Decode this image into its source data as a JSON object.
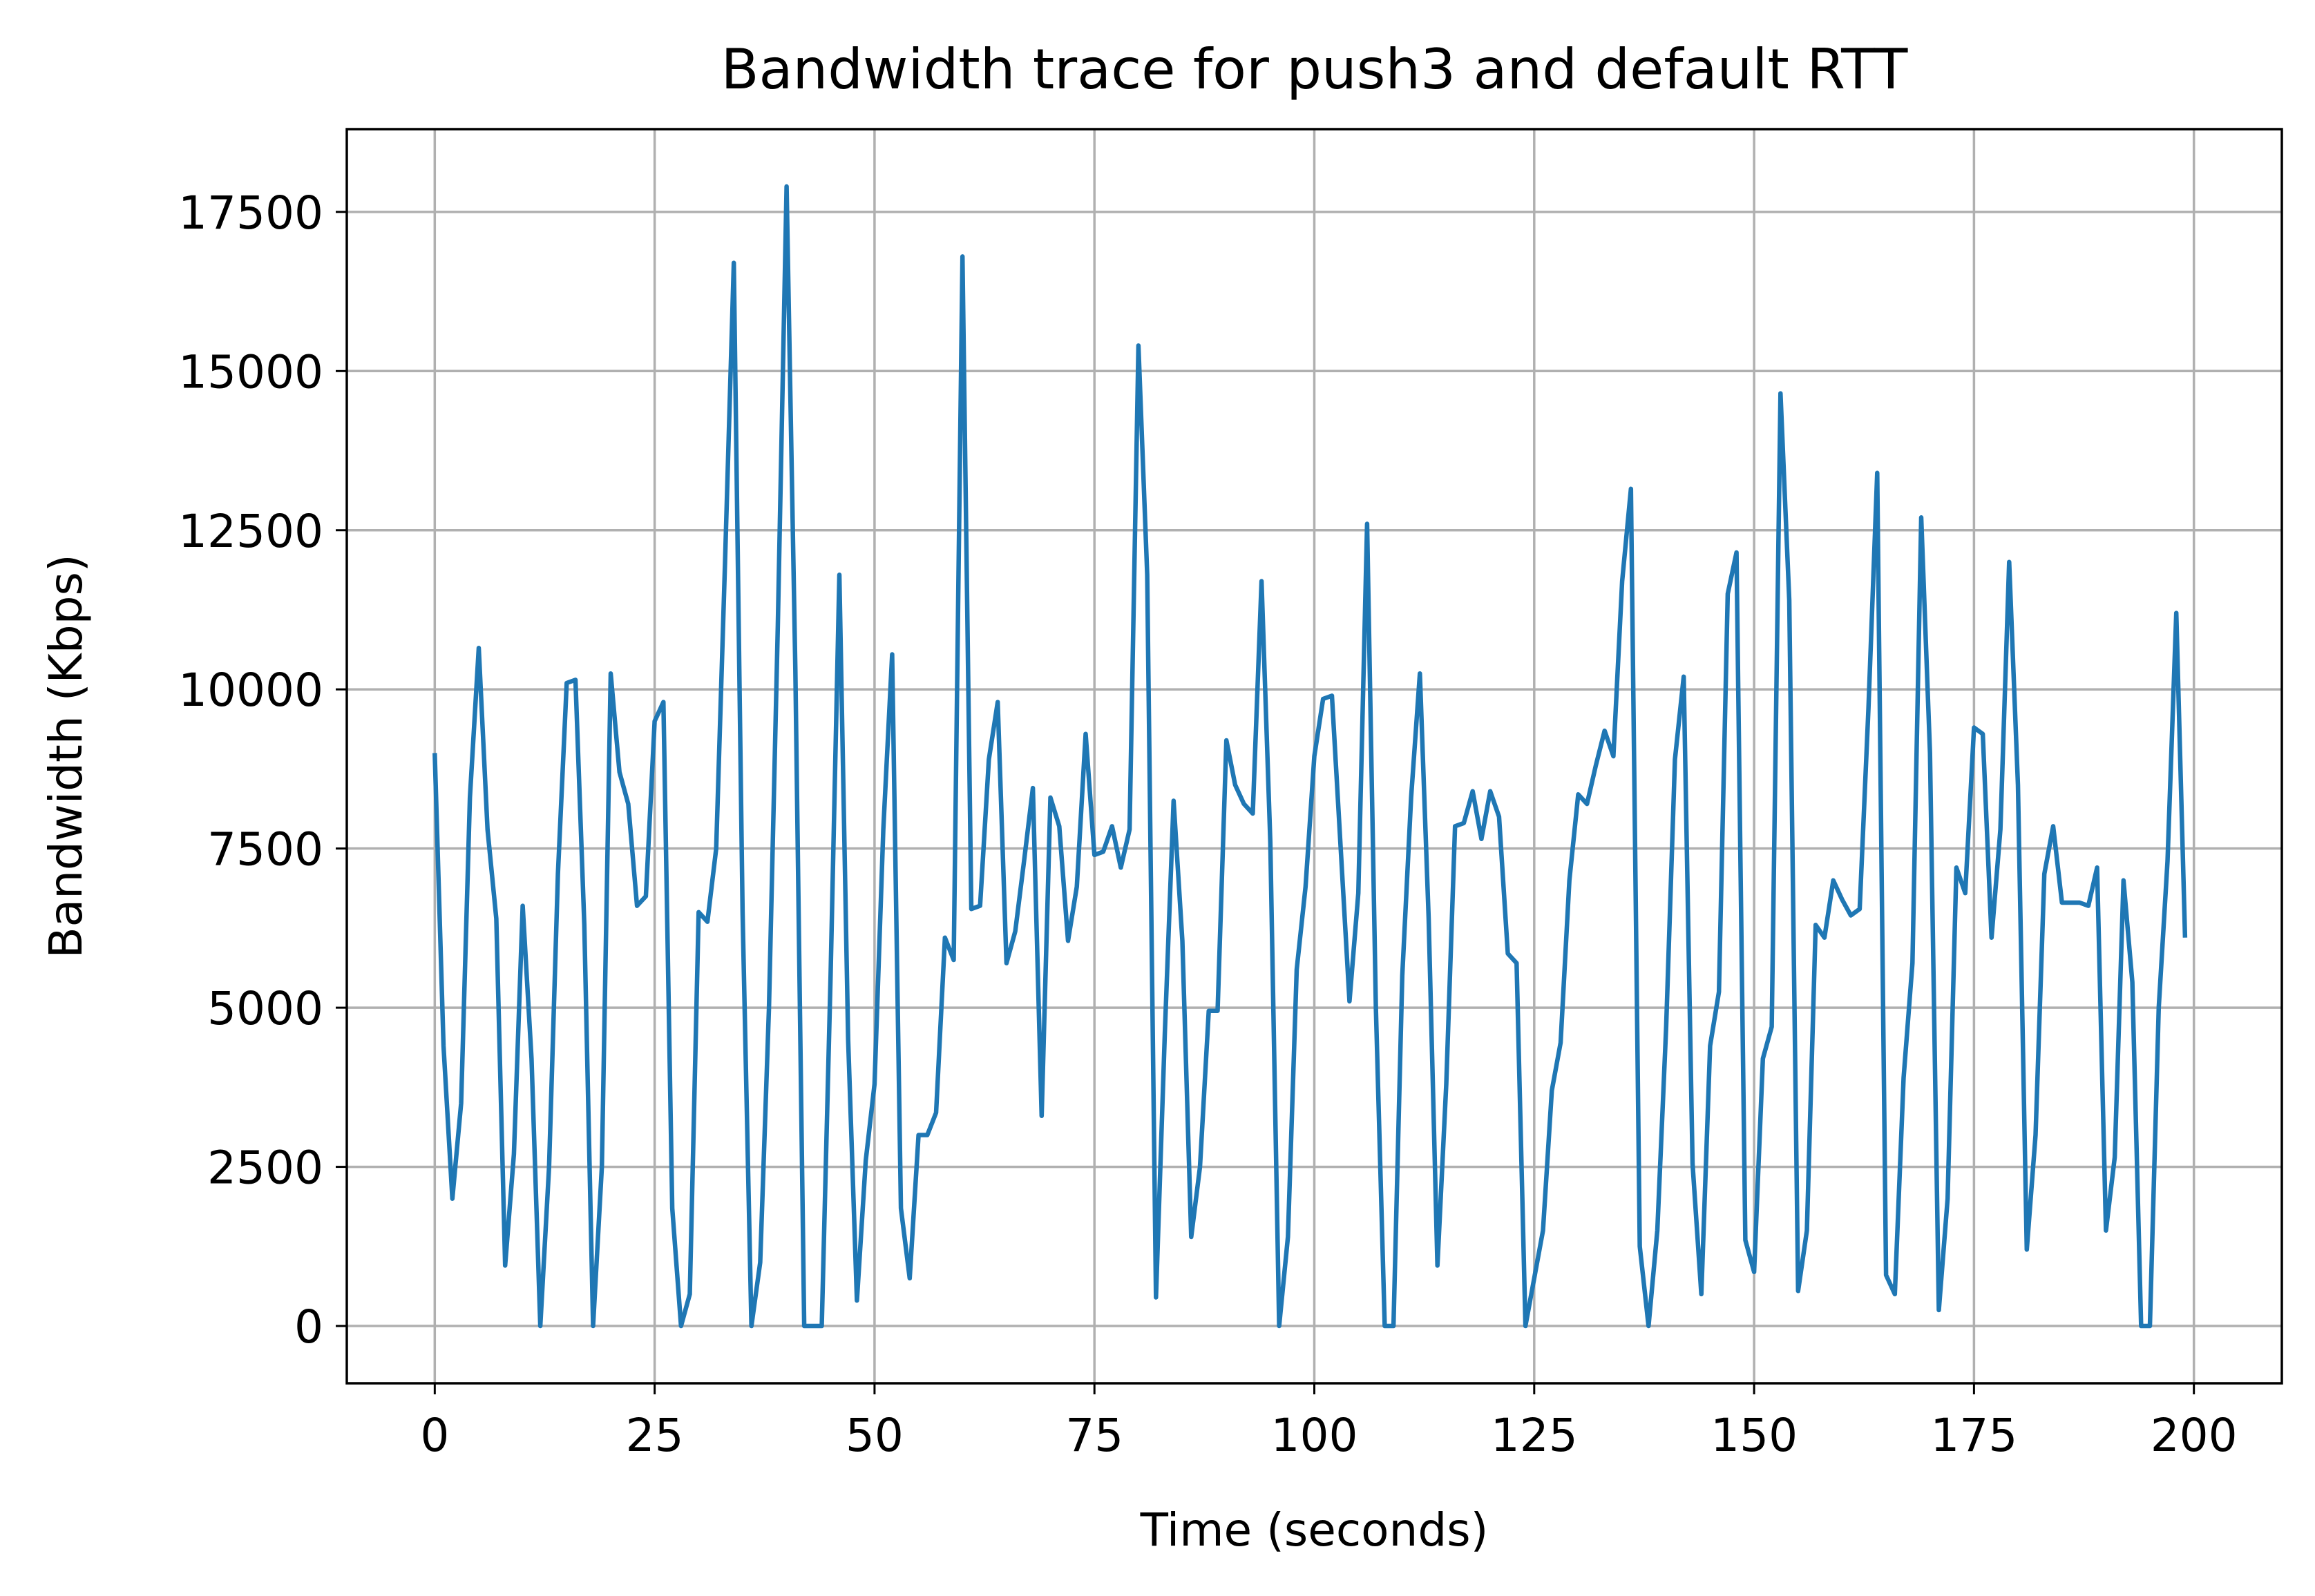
{
  "chart_data": {
    "type": "line",
    "title": "Bandwidth trace for push3 and default RTT",
    "xlabel": "Time (seconds)",
    "ylabel": "Bandwidth (Kbps)",
    "xlim": [
      -10,
      210
    ],
    "ylim": [
      -900,
      18800
    ],
    "xticks": [
      0,
      25,
      50,
      75,
      100,
      125,
      150,
      175,
      200
    ],
    "xtick_labels": [
      "0",
      "25",
      "50",
      "75",
      "100",
      "125",
      "150",
      "175",
      "200"
    ],
    "yticks": [
      0,
      2500,
      5000,
      7500,
      10000,
      12500,
      15000,
      17500
    ],
    "ytick_labels": [
      "0",
      "2500",
      "5000",
      "7500",
      "10000",
      "12500",
      "15000",
      "17500"
    ],
    "grid": true,
    "legend": "none",
    "series": [
      {
        "color": "#1f77b4",
        "x": [
          0,
          1,
          2,
          3,
          4,
          5,
          6,
          7,
          8,
          9,
          10,
          11,
          12,
          13,
          14,
          15,
          16,
          17,
          18,
          19,
          20,
          21,
          22,
          23,
          24,
          25,
          26,
          27,
          28,
          29,
          30,
          31,
          32,
          33,
          34,
          35,
          36,
          37,
          38,
          39,
          40,
          41,
          42,
          43,
          44,
          45,
          46,
          47,
          48,
          49,
          50,
          51,
          52,
          53,
          54,
          55,
          56,
          57,
          58,
          59,
          60,
          61,
          62,
          63,
          64,
          65,
          66,
          67,
          68,
          69,
          70,
          71,
          72,
          73,
          74,
          75,
          76,
          77,
          78,
          79,
          80,
          81,
          82,
          83,
          84,
          85,
          86,
          87,
          88,
          89,
          90,
          91,
          92,
          93,
          94,
          95,
          96,
          97,
          98,
          99,
          100,
          101,
          102,
          103,
          104,
          105,
          106,
          107,
          108,
          109,
          110,
          111,
          112,
          113,
          114,
          115,
          116,
          117,
          118,
          119,
          120,
          121,
          122,
          123,
          124,
          125,
          126,
          127,
          128,
          129,
          130,
          131,
          132,
          133,
          134,
          135,
          136,
          137,
          138,
          139,
          140,
          141,
          142,
          143,
          144,
          145,
          146,
          147,
          148,
          149,
          150,
          151,
          152,
          153,
          154,
          155,
          156,
          157,
          158,
          159,
          160,
          161,
          162,
          163,
          164,
          165,
          166,
          167,
          168,
          169,
          170,
          171,
          172,
          173,
          174,
          175,
          176,
          177,
          178,
          179,
          180,
          181,
          182,
          183,
          184,
          185,
          186,
          187,
          188,
          189,
          190,
          191,
          192,
          193,
          194,
          195,
          196,
          197,
          198,
          199
        ],
        "y": [
          9000,
          4400,
          2000,
          3500,
          8300,
          10650,
          7800,
          6400,
          950,
          2700,
          6600,
          4200,
          0,
          2500,
          7100,
          10100,
          10150,
          6300,
          0,
          2500,
          10250,
          8700,
          8200,
          6600,
          6750,
          9500,
          9800,
          1850,
          0,
          500,
          6500,
          6350,
          7500,
          12000,
          16700,
          6500,
          0,
          1000,
          5000,
          11000,
          17900,
          10300,
          0,
          0,
          0,
          5500,
          11800,
          4500,
          400,
          2600,
          3800,
          7800,
          10550,
          1850,
          750,
          3000,
          3000,
          3350,
          6100,
          5750,
          16800,
          6550,
          6600,
          8900,
          9800,
          5700,
          6200,
          7300,
          8450,
          3300,
          8300,
          7850,
          6050,
          6900,
          9300,
          7400,
          7450,
          7850,
          7200,
          7800,
          15400,
          11800,
          450,
          4600,
          8250,
          6050,
          1400,
          2500,
          4950,
          4950,
          9200,
          8500,
          8200,
          8050,
          11700,
          7600,
          0,
          1400,
          5600,
          6900,
          8950,
          9850,
          9900,
          7500,
          5100,
          6800,
          12600,
          5000,
          0,
          0,
          5500,
          8300,
          10250,
          6400,
          950,
          3800,
          7850,
          7900,
          8400,
          7650,
          8400,
          8000,
          5850,
          5700,
          0,
          750,
          1500,
          3700,
          4450,
          7000,
          8350,
          8200,
          8800,
          9350,
          8950,
          11700,
          13150,
          1250,
          0,
          1500,
          4700,
          8900,
          10200,
          2550,
          500,
          4400,
          5250,
          11500,
          12150,
          1350,
          850,
          4200,
          4700,
          14650,
          11400,
          550,
          1500,
          6300,
          6100,
          7000,
          6700,
          6450,
          6550,
          9700,
          13400,
          800,
          500,
          3900,
          5700,
          12700,
          9000,
          250,
          2000,
          7200,
          6800,
          9400,
          9300,
          6100,
          7800,
          12000,
          8500,
          1200,
          3000,
          7100,
          7850,
          6650,
          6650,
          6650,
          6600,
          7200,
          1500,
          2650,
          7000,
          5400,
          0,
          0,
          5000,
          7300,
          11200,
          6100
        ]
      }
    ]
  }
}
